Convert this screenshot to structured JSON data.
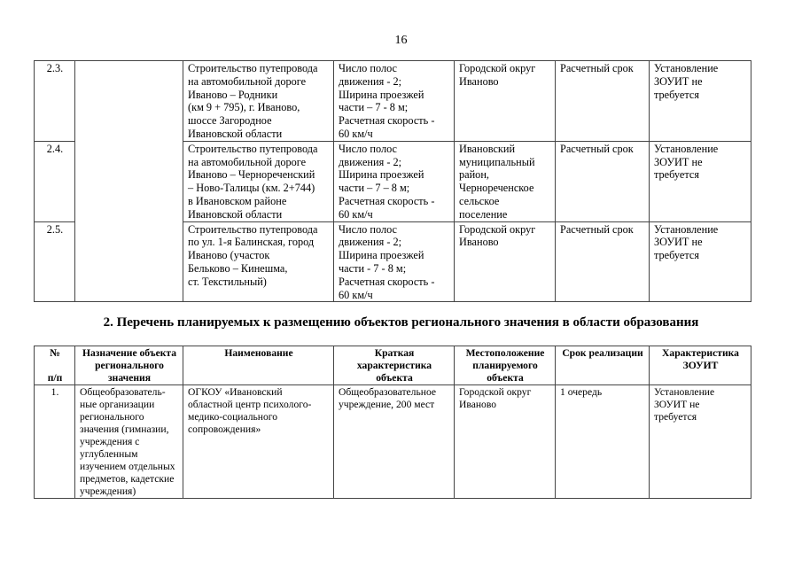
{
  "page_number": "16",
  "table1": {
    "rows": [
      {
        "num": "2.3.",
        "purpose": "",
        "name": "Строительство путепровода\nна автомобильной дороге\nИваново – Родники\n(км 9 + 795), г. Иваново,\nшоссе Загородное\nИвановской области",
        "characteristics": "Число полос\nдвижения - 2;\nШирина проезжей\nчасти – 7 - 8 м;\nРасчетная скорость -\n60 км/ч",
        "location": "Городской округ\nИваново",
        "term": "Расчетный срок",
        "zouit": "Установление\nЗОУИТ не\nтребуется"
      },
      {
        "num": "2.4.",
        "purpose": "",
        "name": "Строительство путепровода\nна автомобильной дороге\nИваново – Чернореченский\n– Ново-Талицы (км. 2+744)\nв Ивановском районе\nИвановской области",
        "characteristics": "Число полос\nдвижения - 2;\nШирина проезжей\nчасти – 7 – 8 м;\nРасчетная скорость -\n60 км/ч",
        "location": "Ивановский\nмуниципальный\nрайон,\nЧернореченское\nсельское\nпоселение",
        "term": "Расчетный срок",
        "zouit": "Установление\nЗОУИТ не\nтребуется"
      },
      {
        "num": "2.5.",
        "purpose": "",
        "name": "Строительство путепровода\nпо ул. 1-я Балинская, город\nИваново (участок\nБельково – Кинешма,\nст. Текстильный)",
        "characteristics": "Число полос\nдвижения - 2;\nШирина проезжей\nчасти - 7 - 8 м;\nРасчетная скорость -\n60 км/ч",
        "location": "Городской округ\nИваново",
        "term": "Расчетный срок",
        "zouit": "Установление\nЗОУИТ не\nтребуется"
      }
    ]
  },
  "section_title": "2. Перечень планируемых к размещению объектов регионального значения в области образования",
  "table2": {
    "headers": [
      "№\n\nп/п",
      "Назначение объекта\nрегионального\nзначения",
      "Наименование",
      "Краткая\nхарактеристика\nобъекта",
      "Местоположение\nпланируемого\nобъекта",
      "Срок реализации",
      "Характеристика\nЗОУИТ"
    ],
    "rows": [
      {
        "num": "1.",
        "purpose": "Общеобразователь-\nные организации\nрегионального\nзначения (гимназии,\nучреждения с\nуглубленным\nизучением отдельных\nпредметов, кадетские\nучреждения)",
        "name": "ОГКОУ  «Ивановский\nобластной центр психолого-\nмедико-социального\nсопровождения»",
        "characteristics": "Общеобразовательное\nучреждение, 200 мест",
        "location": "Городской округ\nИваново",
        "term": "1 очередь",
        "zouit": "Установление\nЗОУИТ не\nтребуется"
      }
    ]
  }
}
